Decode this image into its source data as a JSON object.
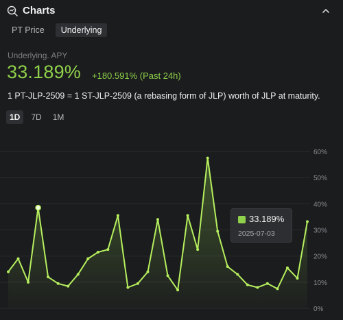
{
  "header": {
    "title": "Charts",
    "icon": "chart-search-icon",
    "collapse_icon": "chevron-up-icon"
  },
  "tabs": [
    {
      "label": "PT Price",
      "active": false
    },
    {
      "label": "Underlying",
      "active": true
    }
  ],
  "apy": {
    "label": "Underlying. APY",
    "value": "33.189%",
    "change": "+180.591% (Past 24h)"
  },
  "description": "1 PT-JLP-2509 = 1 ST-JLP-2509 (a rebasing form of JLP) worth of JLP at maturity.",
  "ranges": [
    {
      "label": "1D",
      "active": true
    },
    {
      "label": "7D",
      "active": false
    },
    {
      "label": "1M",
      "active": false
    }
  ],
  "tooltip": {
    "value": "33.189%",
    "date": "2025-07-03"
  },
  "colors": {
    "accent": "#8fd14a",
    "line": "#b6ef5e",
    "background": "#1b1c1e"
  },
  "chart_data": {
    "type": "area",
    "y_ticks": [
      "0%",
      "10%",
      "20%",
      "30%",
      "40%",
      "50%",
      "60%"
    ],
    "ylim": [
      0,
      65
    ],
    "highlighted_points": [
      3,
      38
    ],
    "values": [
      14,
      19,
      10,
      38.5,
      12,
      9.5,
      8.5,
      13,
      19,
      21.5,
      22.5,
      35.5,
      8,
      9.5,
      14,
      34,
      12.5,
      7,
      35.5,
      22.5,
      57.5,
      29.5,
      16,
      13,
      9,
      8,
      9.5,
      7.5,
      15.5,
      11.5,
      33.2
    ]
  }
}
